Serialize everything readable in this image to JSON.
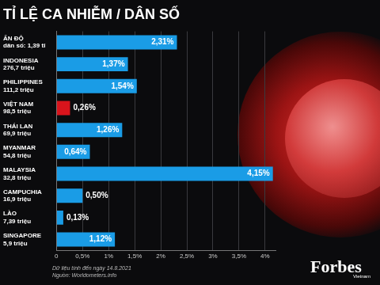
{
  "chart_data": {
    "type": "bar",
    "orientation": "horizontal",
    "title": "TỈ LỆ CA NHIỄM / DÂN SỐ",
    "categories": [
      "ẤN ĐỘ",
      "INDONESIA",
      "PHILIPPINES",
      "VIỆT NAM",
      "THÁI LAN",
      "MYANMAR",
      "MALAYSIA",
      "CAMPUCHIA",
      "LÀO",
      "SINGAPORE"
    ],
    "population_labels": [
      "dân số: 1,39 tỉ",
      "276,7 triệu",
      "111,2 triệu",
      "98,5 triệu",
      "69,9 triệu",
      "54,8 triệu",
      "32,8 triệu",
      "16,9 triệu",
      "7,39 triệu",
      "5,9 triệu"
    ],
    "values": [
      2.31,
      1.37,
      1.54,
      0.26,
      1.26,
      0.64,
      4.15,
      0.5,
      0.13,
      1.12
    ],
    "value_labels": [
      "2,31%",
      "1,37%",
      "1,54%",
      "0,26%",
      "1,26%",
      "0,64%",
      "4,15%",
      "0,50%",
      "0,13%",
      "1,12%"
    ],
    "colors": [
      "#1a9ce6",
      "#1a9ce6",
      "#1a9ce6",
      "#d9141c",
      "#1a9ce6",
      "#1a9ce6",
      "#1a9ce6",
      "#1a9ce6",
      "#1a9ce6",
      "#1a9ce6"
    ],
    "xlim": [
      0,
      4.2
    ],
    "xticks": [
      0,
      {
        "value": 0.5,
        "label": "0,5%"
      },
      {
        "value": 1,
        "label": "1%"
      },
      {
        "value": 1.5,
        "label": "1,5%"
      },
      {
        "value": 2,
        "label": "2%"
      },
      {
        "value": 2.5,
        "label": "2,5%"
      },
      {
        "value": 3,
        "label": "3%"
      },
      {
        "value": 3.5,
        "label": "3,5%"
      },
      {
        "value": 4,
        "label": "4%"
      }
    ],
    "grid": true,
    "data_labels": true,
    "footnotes": [
      "Dữ liệu tính đến ngày 14.8.2021",
      "Nguồn: Worldometers.info"
    ],
    "brand": "Forbes",
    "brand_sub": "Vietnam"
  }
}
